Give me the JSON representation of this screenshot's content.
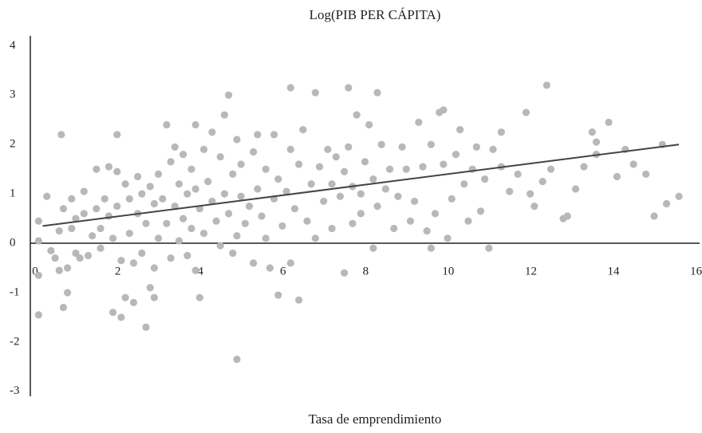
{
  "chart_data": {
    "type": "scatter",
    "title": "Log(PIB PER CÁPITA)",
    "x_label": "Tasa de emprendimiento",
    "xlim": [
      0,
      16.2
    ],
    "ylim": [
      -3.1,
      4.2
    ],
    "xticks": [
      0,
      2,
      4,
      6,
      8,
      10,
      12,
      14,
      16
    ],
    "yticks": [
      -3,
      -2,
      -1,
      0,
      1,
      2,
      3,
      4
    ],
    "grid": false,
    "trendline": {
      "color": "#444444",
      "x": [
        0.3,
        15.7
      ],
      "y": [
        0.35,
        2.0
      ]
    },
    "series": [
      {
        "color": "#b8b8b8",
        "x": [
          0.2,
          0.2,
          0.2,
          0.2,
          0.4,
          0.5,
          0.6,
          0.7,
          0.7,
          0.75,
          0.8,
          0.8,
          0.9,
          0.9,
          1.0,
          1.0,
          1.1,
          1.1,
          1.2,
          1.3,
          1.3,
          1.4,
          1.5,
          1.6,
          1.6,
          1.7,
          1.7,
          1.8,
          1.9,
          1.9,
          2.0,
          2.0,
          2.1,
          2.1,
          2.1,
          2.2,
          2.2,
          2.3,
          2.3,
          2.4,
          2.4,
          2.5,
          2.5,
          2.6,
          2.6,
          2.7,
          2.7,
          2.8,
          2.8,
          2.9,
          2.9,
          3.0,
          3.0,
          3.0,
          3.1,
          3.1,
          3.2,
          3.3,
          3.3,
          3.4,
          3.4,
          3.5,
          3.5,
          3.6,
          3.6,
          3.7,
          3.7,
          3.8,
          3.8,
          3.9,
          3.9,
          4.0,
          4.0,
          4.0,
          4.1,
          4.1,
          4.2,
          4.2,
          4.3,
          4.4,
          4.4,
          4.5,
          4.6,
          4.6,
          4.7,
          4.7,
          4.8,
          4.8,
          4.9,
          4.9,
          5.0,
          5.0,
          5.0,
          5.1,
          5.1,
          5.2,
          5.3,
          5.4,
          5.4,
          5.5,
          5.5,
          5.6,
          5.7,
          5.7,
          5.8,
          5.9,
          5.9,
          6.0,
          6.0,
          6.1,
          6.2,
          6.3,
          6.3,
          6.4,
          6.5,
          6.5,
          6.6,
          6.7,
          6.8,
          6.9,
          7.0,
          7.1,
          7.2,
          7.3,
          7.3,
          7.4,
          7.5,
          7.6,
          7.6,
          7.7,
          7.7,
          7.8,
          7.8,
          7.9,
          8.0,
          8.0,
          8.1,
          8.2,
          8.3,
          8.3,
          8.4,
          8.4,
          8.5,
          8.6,
          8.7,
          8.8,
          8.9,
          9.0,
          9.1,
          9.2,
          9.3,
          9.4,
          9.5,
          9.6,
          9.7,
          9.8,
          9.9,
          10.0,
          10.1,
          10.2,
          10.3,
          10.4,
          10.5,
          10.6,
          10.7,
          10.8,
          10.9,
          11.0,
          11.1,
          11.2,
          11.4,
          11.6,
          11.8,
          12.0,
          12.1,
          12.2,
          12.4,
          12.6,
          12.9,
          13.0,
          13.2,
          13.4,
          13.6,
          13.7,
          13.7,
          14.2,
          14.6,
          14.9,
          15.1,
          15.3,
          12.5,
          15.4,
          15.7,
          14.0,
          14.4,
          6.3,
          6.9,
          11.4,
          10.0,
          9.7
        ],
        "values": [
          0.45,
          0.05,
          -0.65,
          -1.45,
          0.95,
          -0.15,
          -0.3,
          0.25,
          -0.55,
          2.2,
          0.7,
          -1.3,
          -0.5,
          -1.0,
          0.9,
          0.3,
          0.5,
          -0.2,
          -0.3,
          1.05,
          0.6,
          -0.25,
          0.15,
          1.5,
          0.7,
          0.3,
          -0.1,
          0.9,
          1.55,
          0.55,
          -1.4,
          0.1,
          2.2,
          1.45,
          0.75,
          -1.5,
          -0.35,
          1.2,
          -1.1,
          0.9,
          0.2,
          -1.2,
          -0.4,
          1.35,
          0.6,
          1.0,
          -0.2,
          -1.7,
          0.4,
          -0.9,
          1.15,
          0.8,
          -0.5,
          -1.1,
          1.4,
          0.1,
          0.9,
          2.4,
          0.4,
          1.65,
          -0.3,
          1.95,
          0.75,
          1.2,
          0.05,
          1.8,
          0.5,
          -0.25,
          1.0,
          1.5,
          0.3,
          2.4,
          1.1,
          -0.55,
          0.7,
          -1.1,
          1.9,
          0.2,
          1.25,
          0.85,
          2.25,
          0.45,
          1.75,
          -0.05,
          2.6,
          1.0,
          3.0,
          0.6,
          1.4,
          -0.2,
          2.1,
          0.15,
          -2.35,
          0.95,
          1.6,
          0.4,
          0.75,
          1.85,
          -0.4,
          2.2,
          1.1,
          0.55,
          1.5,
          0.1,
          -0.5,
          2.2,
          0.9,
          1.3,
          -1.05,
          0.35,
          1.05,
          1.9,
          -0.4,
          0.7,
          1.6,
          -1.15,
          2.3,
          0.45,
          1.2,
          0.1,
          1.55,
          0.85,
          1.9,
          0.3,
          1.2,
          1.75,
          0.95,
          1.45,
          -0.6,
          3.15,
          1.95,
          0.4,
          1.15,
          2.6,
          1.0,
          0.6,
          1.65,
          2.4,
          1.3,
          -0.1,
          3.05,
          0.75,
          2.0,
          1.1,
          1.5,
          0.3,
          0.95,
          1.95,
          1.5,
          0.45,
          0.85,
          2.45,
          1.55,
          0.25,
          2.0,
          0.6,
          2.65,
          1.6,
          0.1,
          0.9,
          1.8,
          2.3,
          1.2,
          0.45,
          1.5,
          1.95,
          0.65,
          1.3,
          -0.1,
          1.9,
          1.55,
          1.05,
          1.4,
          2.65,
          1.0,
          0.75,
          1.25,
          1.5,
          0.5,
          0.55,
          1.1,
          1.55,
          2.25,
          2.05,
          1.8,
          1.35,
          1.6,
          1.4,
          0.55,
          2.0,
          3.2,
          0.8,
          0.95,
          2.45,
          1.9,
          3.15,
          3.05,
          2.25,
          2.7,
          -0.1
        ]
      }
    ]
  }
}
